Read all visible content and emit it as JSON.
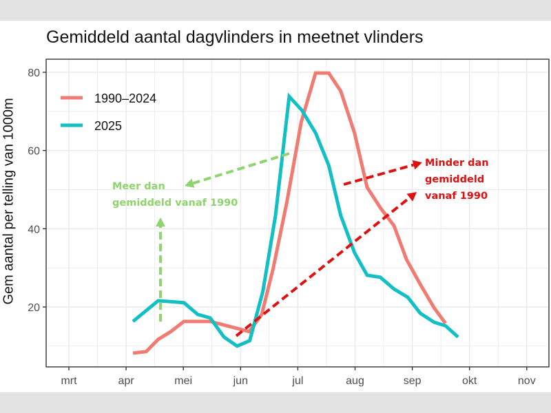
{
  "chart_data": {
    "type": "line",
    "title": "Gemiddeld aantal dagvlinders in meetnet vlinders",
    "xlabel": "",
    "ylabel": "Gem aantal per telling van 1000m",
    "x_unit": "month (3 = 1 mrt, 4 = 1 apr, ...)",
    "xlim": [
      2.63,
      11.4
    ],
    "ylim": [
      4.7,
      83.3
    ],
    "x_ticks": [
      3,
      4,
      5,
      6,
      7,
      8,
      9,
      10,
      11
    ],
    "x_tick_labels": [
      "mrt",
      "apr",
      "mei",
      "jun",
      "jul",
      "aug",
      "sep",
      "okt",
      "nov"
    ],
    "y_ticks": [
      20,
      40,
      60,
      80
    ],
    "y_tick_labels": [
      "20",
      "40",
      "60",
      "80"
    ],
    "grid": true,
    "legend_position": "top-left",
    "series": [
      {
        "name": "1990–2024",
        "color": "#f07b72",
        "x": [
          4.12,
          4.35,
          4.56,
          4.78,
          5.01,
          5.47,
          5.97,
          6.15,
          6.37,
          6.57,
          6.81,
          7.06,
          7.31,
          7.54,
          7.75,
          7.99,
          8.21,
          8.45,
          8.68,
          8.9,
          9.14,
          9.38,
          9.58
        ],
        "y": [
          8.2,
          8.6,
          11.7,
          13.7,
          16.3,
          16.3,
          14.4,
          13.7,
          18.1,
          29.9,
          46.9,
          67.3,
          79.8,
          79.8,
          75.2,
          64.5,
          50.6,
          45.2,
          40.8,
          32.1,
          25.8,
          19.8,
          15.8
        ]
      },
      {
        "name": "2025",
        "color": "#12bfc4",
        "x": [
          4.12,
          4.56,
          5.01,
          5.25,
          5.47,
          5.71,
          5.94,
          6.16,
          6.39,
          6.61,
          6.85,
          7.07,
          7.31,
          7.54,
          7.75,
          7.99,
          8.21,
          8.44,
          8.68,
          8.92,
          9.14,
          9.38,
          9.58,
          9.8
        ],
        "y": [
          16.3,
          21.6,
          21.1,
          18.1,
          17.2,
          12.3,
          10.0,
          11.4,
          24.0,
          43.4,
          73.8,
          70.3,
          64.5,
          56.2,
          43.4,
          33.9,
          28.1,
          27.6,
          24.6,
          22.5,
          18.4,
          16.1,
          15.2,
          12.3
        ]
      }
    ],
    "annotations": [
      {
        "lines": [
          "Meer dan",
          "gemiddeld vanaf 1990"
        ],
        "color": "#8fd46e"
      },
      {
        "lines": [
          "Minder dan",
          "gemiddeld",
          "vanaf 1990"
        ],
        "color": "#e01010"
      }
    ]
  }
}
